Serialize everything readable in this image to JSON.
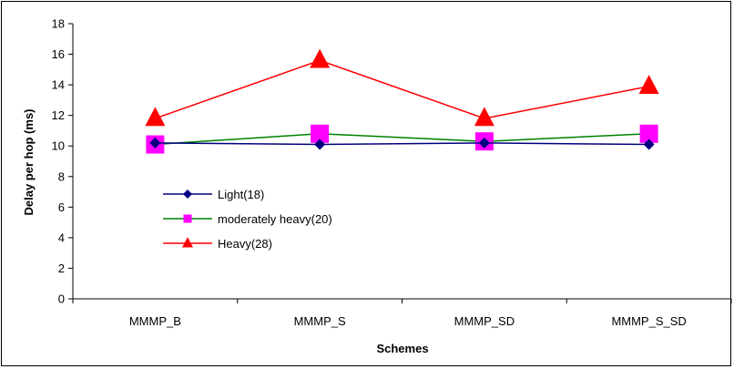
{
  "chart_data": {
    "type": "line",
    "title": "",
    "xlabel": "Schemes",
    "ylabel": "Delay per hop (ms)",
    "categories": [
      "MMMP_B",
      "MMMP_S",
      "MMMP_SD",
      "MMMP_S_SD"
    ],
    "ylim": [
      0,
      18
    ],
    "yticks": [
      0,
      2,
      4,
      6,
      8,
      10,
      12,
      14,
      16,
      18
    ],
    "grid": false,
    "legend_position": "left-inside",
    "series": [
      {
        "name": "Light(18)",
        "values": [
          10.2,
          10.1,
          10.2,
          10.1
        ],
        "color": "#000080",
        "marker": "diamond"
      },
      {
        "name": "moderately heavy(20)",
        "values": [
          10.1,
          10.8,
          10.3,
          10.8
        ],
        "color": "#008000",
        "marker_color": "#ff00ff",
        "marker": "square"
      },
      {
        "name": "Heavy(28)",
        "values": [
          11.8,
          15.6,
          11.8,
          13.9
        ],
        "color": "#ff0000",
        "marker": "triangle"
      }
    ]
  }
}
